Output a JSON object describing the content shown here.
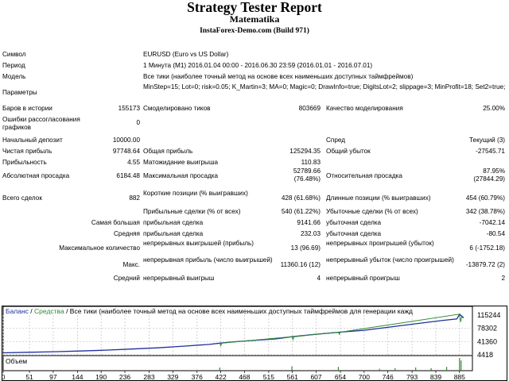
{
  "header": {
    "title": "Strategy Tester Report",
    "subtitle": "Matematika",
    "server": "InstaForex-Demo.com (Build 971)"
  },
  "rows": [
    [
      {
        "t": "Символ",
        "x": 3,
        "y": 64
      },
      {
        "t": "EURUSD (Euro vs US Dollar)",
        "x": 180,
        "y": 64
      }
    ],
    [
      {
        "t": "Период",
        "x": 3,
        "y": 78
      },
      {
        "t": "1 Минута (M1) 2016.01.04 00:00 - 2016.06.30 23:59 (2016.01.01 - 2016.07.01)",
        "x": 180,
        "y": 78
      }
    ],
    [
      {
        "t": "Модель",
        "x": 3,
        "y": 92
      },
      {
        "t": "Все тики (наиболее точный метод на основе всех наименьших доступных таймфреймов)",
        "x": 180,
        "y": 92
      }
    ],
    [
      {
        "t": "Параметры",
        "x": 3,
        "y": 112
      },
      {
        "t": "MinStep=15; Lot=0; risk=0.05; K_Martin=3; MA=0; Magic=0; DrawInfo=true; DigitsLot=2; slippage=3; MinProfit=18; Set2=true;",
        "x": 180,
        "y": 105,
        "w": 460
      }
    ],
    [
      {
        "t": "Баров в истории",
        "x": 3,
        "y": 132
      },
      {
        "t": "155173",
        "x": 176,
        "y": 132,
        "r": 1
      },
      {
        "t": "Смоделировано тиков",
        "x": 180,
        "y": 132
      },
      {
        "t": "803669",
        "x": 403,
        "y": 132,
        "r": 1
      },
      {
        "t": "Качество моделирования",
        "x": 410,
        "y": 132
      },
      {
        "t": "25.00%",
        "x": 635,
        "y": 132,
        "r": 1
      }
    ],
    [
      {
        "t": "Ошибки рассогласования графиков",
        "x": 3,
        "y": 146,
        "w": 120
      },
      {
        "t": "0",
        "x": 176,
        "y": 150,
        "r": 1
      }
    ],
    [
      {
        "t": "Начальный депозит",
        "x": 3,
        "y": 172
      },
      {
        "t": "10000.00",
        "x": 176,
        "y": 172,
        "r": 1
      },
      {
        "t": "Спред",
        "x": 410,
        "y": 172
      },
      {
        "t": "Текущий (3)",
        "x": 635,
        "y": 172,
        "r": 1
      }
    ],
    [
      {
        "t": "Чистая прибыль",
        "x": 3,
        "y": 186
      },
      {
        "t": "97748.64",
        "x": 176,
        "y": 186,
        "r": 1
      },
      {
        "t": "Общая прибыль",
        "x": 180,
        "y": 186
      },
      {
        "t": "125294.35",
        "x": 403,
        "y": 186,
        "r": 1
      },
      {
        "t": "Общий убыток",
        "x": 410,
        "y": 186
      },
      {
        "t": "-27545.71",
        "x": 635,
        "y": 186,
        "r": 1
      }
    ],
    [
      {
        "t": "Прибыльность",
        "x": 3,
        "y": 200
      },
      {
        "t": "4.55",
        "x": 176,
        "y": 200,
        "r": 1
      },
      {
        "t": "Матожидание выигрыша",
        "x": 180,
        "y": 200
      },
      {
        "t": "110.83",
        "x": 403,
        "y": 200,
        "r": 1
      }
    ],
    [
      {
        "t": "Абсолютная просадка",
        "x": 3,
        "y": 217
      },
      {
        "t": "6184.48",
        "x": 176,
        "y": 217,
        "r": 1
      },
      {
        "t": "Максимальная просадка",
        "x": 180,
        "y": 217
      },
      {
        "t": "52789.66",
        "x": 403,
        "y": 211,
        "r": 1
      },
      {
        "t": "(76.48%)",
        "x": 403,
        "y": 221,
        "r": 1
      },
      {
        "t": "Относительная просадка",
        "x": 410,
        "y": 217
      },
      {
        "t": "87.95%",
        "x": 635,
        "y": 211,
        "r": 1
      },
      {
        "t": "(27844.29)",
        "x": 635,
        "y": 221,
        "r": 1
      }
    ],
    [
      {
        "t": "Всего сделок",
        "x": 3,
        "y": 245
      },
      {
        "t": "882",
        "x": 176,
        "y": 245,
        "r": 1
      },
      {
        "t": "Короткие позиции (% выигравших)",
        "x": 180,
        "y": 239,
        "w": 135
      },
      {
        "t": "428 (61.68%)",
        "x": 403,
        "y": 245,
        "r": 1
      },
      {
        "t": "Длинные позиции (% выигравших)",
        "x": 410,
        "y": 245
      },
      {
        "t": "454 (60.79%)",
        "x": 635,
        "y": 245,
        "r": 1
      }
    ],
    [
      {
        "t": "Прибыльные сделки (% от всех)",
        "x": 180,
        "y": 262
      },
      {
        "t": "540 (61.22%)",
        "x": 403,
        "y": 262,
        "r": 1
      },
      {
        "t": "Убыточные сделки (% от всех)",
        "x": 410,
        "y": 262
      },
      {
        "t": "342 (38.78%)",
        "x": 635,
        "y": 262,
        "r": 1
      }
    ],
    [
      {
        "t": "Самая большая",
        "x": 176,
        "y": 276,
        "r": 1
      },
      {
        "t": "прибыльная сделка",
        "x": 180,
        "y": 276
      },
      {
        "t": "9141.66",
        "x": 403,
        "y": 276,
        "r": 1
      },
      {
        "t": "убыточная сделка",
        "x": 410,
        "y": 276
      },
      {
        "t": "-7042.14",
        "x": 635,
        "y": 276,
        "r": 1
      }
    ],
    [
      {
        "t": "Средняя",
        "x": 176,
        "y": 290,
        "r": 1
      },
      {
        "t": "прибыльная сделка",
        "x": 180,
        "y": 290
      },
      {
        "t": "232.03",
        "x": 403,
        "y": 290,
        "r": 1
      },
      {
        "t": "убыточная сделка",
        "x": 410,
        "y": 290
      },
      {
        "t": "-80.54",
        "x": 635,
        "y": 290,
        "r": 1
      }
    ],
    [
      {
        "t": "Максимальное количество",
        "x": 176,
        "y": 308,
        "r": 1
      },
      {
        "t": "непрерывных выигрышей (прибыль)",
        "x": 180,
        "y": 302,
        "w": 140
      },
      {
        "t": "13 (96.69)",
        "x": 403,
        "y": 308,
        "r": 1
      },
      {
        "t": "непрерывных проигрышей (убыток)",
        "x": 410,
        "y": 302,
        "w": 140
      },
      {
        "t": "6 (-1752.18)",
        "x": 635,
        "y": 308,
        "r": 1
      }
    ],
    [
      {
        "t": "Макс.",
        "x": 176,
        "y": 329,
        "r": 1
      },
      {
        "t": "непрерывная прибыль (число выигрышей)",
        "x": 180,
        "y": 323,
        "w": 165
      },
      {
        "t": "11360.16 (12)",
        "x": 403,
        "y": 329,
        "r": 1
      },
      {
        "t": "непрерывный убыток (число проигрышей)",
        "x": 410,
        "y": 323,
        "w": 165
      },
      {
        "t": "-13879.72 (2)",
        "x": 635,
        "y": 329,
        "r": 1
      }
    ],
    [
      {
        "t": "Средний",
        "x": 176,
        "y": 346,
        "r": 1
      },
      {
        "t": "непрерывный выигрыш",
        "x": 180,
        "y": 346
      },
      {
        "t": "4",
        "x": 403,
        "y": 346,
        "r": 1
      },
      {
        "t": "непрерывный проигрыш",
        "x": 410,
        "y": 346
      },
      {
        "t": "2",
        "x": 635,
        "y": 346,
        "r": 1
      }
    ]
  ],
  "chart_data": {
    "type": "line",
    "legend": {
      "balance": "Баланс",
      "sep1": " / ",
      "equity": "Средства",
      "sep2": " / ",
      "model": "Все тики (наиболее точный метод на основе всех наименьших доступных таймфреймов для генерации кажд"
    },
    "volume_label": "Объем",
    "y_ticks": [
      115244,
      78302,
      41360,
      4418
    ],
    "ylim": [
      4418,
      115244
    ],
    "x_ticks": [
      0,
      51,
      97,
      144,
      190,
      236,
      283,
      329,
      376,
      422,
      468,
      515,
      561,
      607,
      654,
      700,
      746,
      793,
      839,
      885
    ],
    "xlim": [
      0,
      910
    ],
    "series": [
      {
        "name": "Баланс",
        "color": "#1f2f9f",
        "x": [
          0,
          50,
          100,
          150,
          200,
          250,
          300,
          350,
          400,
          420,
          450,
          500,
          530,
          560,
          600,
          640,
          660,
          700,
          750,
          800,
          850,
          880,
          885,
          893
        ],
        "y": [
          10000,
          11500,
          13000,
          15000,
          17500,
          20500,
          24000,
          28500,
          33500,
          37000,
          41000,
          46000,
          49000,
          55000,
          61000,
          66000,
          68500,
          73000,
          82000,
          91000,
          100000,
          104500,
          118000,
          107748
        ]
      },
      {
        "name": "Средства",
        "color": "#2e8b2e",
        "x": [
          420,
          422,
          424,
          560,
          562,
          564,
          650,
          652,
          654,
          885,
          887,
          889,
          891
        ],
        "y": [
          37000,
          30000,
          37000,
          55000,
          47000,
          55000,
          67500,
          62000,
          67500,
          118000,
          96000,
          110000,
          107748
        ]
      }
    ],
    "volume": {
      "x": [
        420,
        560,
        650,
        730,
        760,
        800,
        830,
        860,
        885,
        888
      ],
      "v": [
        0.25,
        0.35,
        0.3,
        0.15,
        0.2,
        0.25,
        0.2,
        0.3,
        1.0,
        0.8
      ]
    },
    "colors": {
      "balance": "#1f2f9f",
      "equity": "#2e8b2e",
      "volume": "#2e8b2e",
      "grid": "#c0c0c0"
    }
  }
}
